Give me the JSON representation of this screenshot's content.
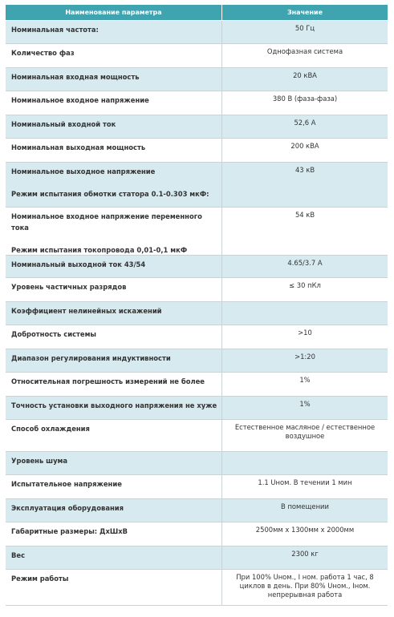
{
  "table": {
    "headers": [
      "Наименование параметра",
      "Значение"
    ],
    "rows": [
      {
        "param": [
          "Номинальная частота:"
        ],
        "value": [
          "50 Гц"
        ]
      },
      {
        "param": [
          "Количество фаз"
        ],
        "value": [
          "Однофазная система"
        ]
      },
      {
        "param": [
          "Номинальная входная мощность"
        ],
        "value": [
          "20 кВА"
        ]
      },
      {
        "param": [
          "Номинальное входное напряжение"
        ],
        "value": [
          "380 В (фаза-фаза)"
        ]
      },
      {
        "param": [
          "Номинальный входной ток"
        ],
        "value": [
          "52,6 А"
        ]
      },
      {
        "param": [
          "Номинальная выходная мощность"
        ],
        "value": [
          "200 кВА"
        ]
      },
      {
        "param": [
          "Номинальное выходное напряжение",
          "Режим испытания обмотки статора 0.1-0.303 мкФ:"
        ],
        "value": [
          "43 кВ"
        ]
      },
      {
        "param": [
          "Номинальное входное напряжение переменного тока",
          "Режим испытания токопровода 0,01-0,1 мкФ"
        ],
        "value": [
          "54 кВ"
        ]
      },
      {
        "param": [
          "Номинальный выходной ток 43/54"
        ],
        "value": [
          "4.65/3.7 А"
        ]
      },
      {
        "param": [
          "Уровень частичных разрядов"
        ],
        "value": [
          "≤ 30 пКл"
        ]
      },
      {
        "param": [
          "Коэффициент нелинейных искажений"
        ],
        "value": [
          ""
        ]
      },
      {
        "param": [
          "Добротность системы"
        ],
        "value": [
          ">10"
        ]
      },
      {
        "param": [
          "Диапазон регулирования индуктивности"
        ],
        "value": [
          ">1:20"
        ]
      },
      {
        "param": [
          "Относительная погрешность измерений не более"
        ],
        "value": [
          "1%"
        ]
      },
      {
        "param": [
          "Точность установки выходного напряжения не хуже"
        ],
        "value": [
          "1%"
        ]
      },
      {
        "param": [
          "Способ охлаждения"
        ],
        "value": [
          "Естественное масляное / естественное",
          "воздушное"
        ]
      },
      {
        "param": [
          "Уровень шума"
        ],
        "value": [
          ""
        ]
      },
      {
        "param": [
          "Испытательное напряжение"
        ],
        "value": [
          "1.1 Uном. В течении 1 мин"
        ]
      },
      {
        "param": [
          "Эксплуатация оборудования"
        ],
        "value": [
          "В помещении"
        ]
      },
      {
        "param": [
          "Габаритные размеры: ДхШхВ"
        ],
        "value": [
          "2500мм х 1300мм х 2000мм"
        ]
      },
      {
        "param": [
          "Вес"
        ],
        "value": [
          "2300 кг"
        ]
      },
      {
        "param": [
          "Режим работы"
        ],
        "value": [
          "При 100% Uном., I ном. работа 1 час, 8",
          "циклов в день.  При 80%   Uном., Iном.",
          "непрерывная работа"
        ]
      }
    ]
  }
}
